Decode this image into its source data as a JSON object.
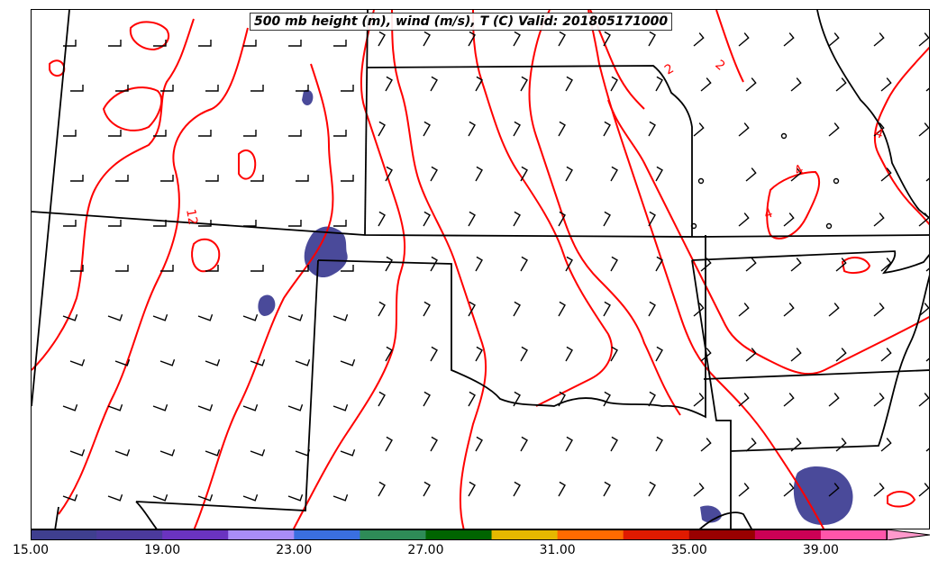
{
  "title": "500 mb height (m), wind (m/s), T (C) Valid: 201805171000",
  "contour_labels": [
    "2",
    "2",
    "4",
    "4",
    "4",
    "12"
  ],
  "colorbar": {
    "colors": [
      "#3f3f8f",
      "#4b3a9c",
      "#6a33c0",
      "#a98cf7",
      "#3a6fe0",
      "#2e8b57",
      "#006400",
      "#e6b800",
      "#ff6a00",
      "#e01a00",
      "#990000",
      "#cc0055",
      "#ff55aa",
      "#ff99cc"
    ],
    "tick_labels": [
      "15.00",
      "19.00",
      "23.00",
      "27.00",
      "31.00",
      "35.00",
      "39.00"
    ]
  },
  "styles": {
    "contour_color": "#ff0000",
    "shade_color": "#4a4a9a",
    "border_color": "#000000"
  }
}
